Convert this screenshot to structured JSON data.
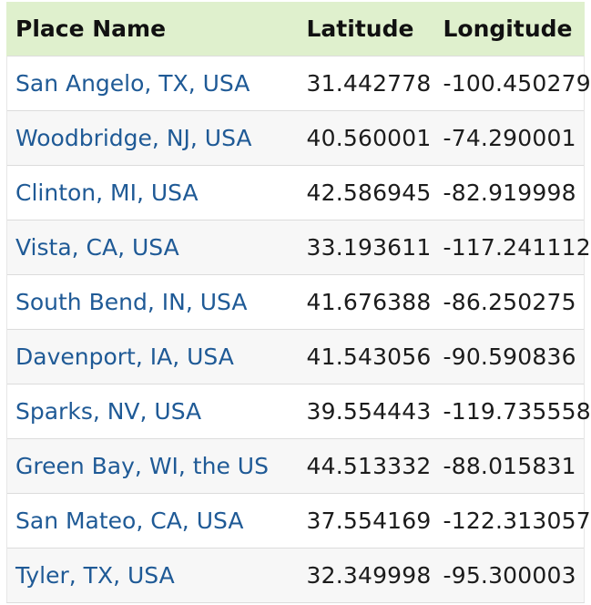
{
  "table": {
    "headers": {
      "place_name": "Place Name",
      "latitude": "Latitude",
      "longitude": "Longitude"
    },
    "rows": [
      {
        "place": "San Angelo, TX, USA",
        "lat": "31.442778",
        "lon": "-100.450279"
      },
      {
        "place": "Woodbridge, NJ, USA",
        "lat": "40.560001",
        "lon": "-74.290001"
      },
      {
        "place": "Clinton, MI, USA",
        "lat": "42.586945",
        "lon": "-82.919998"
      },
      {
        "place": "Vista, CA, USA",
        "lat": "33.193611",
        "lon": "-117.241112"
      },
      {
        "place": "South Bend, IN, USA",
        "lat": "41.676388",
        "lon": "-86.250275"
      },
      {
        "place": "Davenport, IA, USA",
        "lat": "41.543056",
        "lon": "-90.590836"
      },
      {
        "place": "Sparks, NV, USA",
        "lat": "39.554443",
        "lon": "-119.735558"
      },
      {
        "place": "Green Bay, WI, the US",
        "lat": "44.513332",
        "lon": "-88.015831"
      },
      {
        "place": "San Mateo, CA, USA",
        "lat": "37.554169",
        "lon": "-122.313057"
      },
      {
        "place": "Tyler, TX, USA",
        "lat": "32.349998",
        "lon": "-95.300003"
      }
    ]
  },
  "colors": {
    "header_background": "#dff0cd",
    "link": "#1f5a96",
    "row_stripe": "#f7f7f7"
  }
}
